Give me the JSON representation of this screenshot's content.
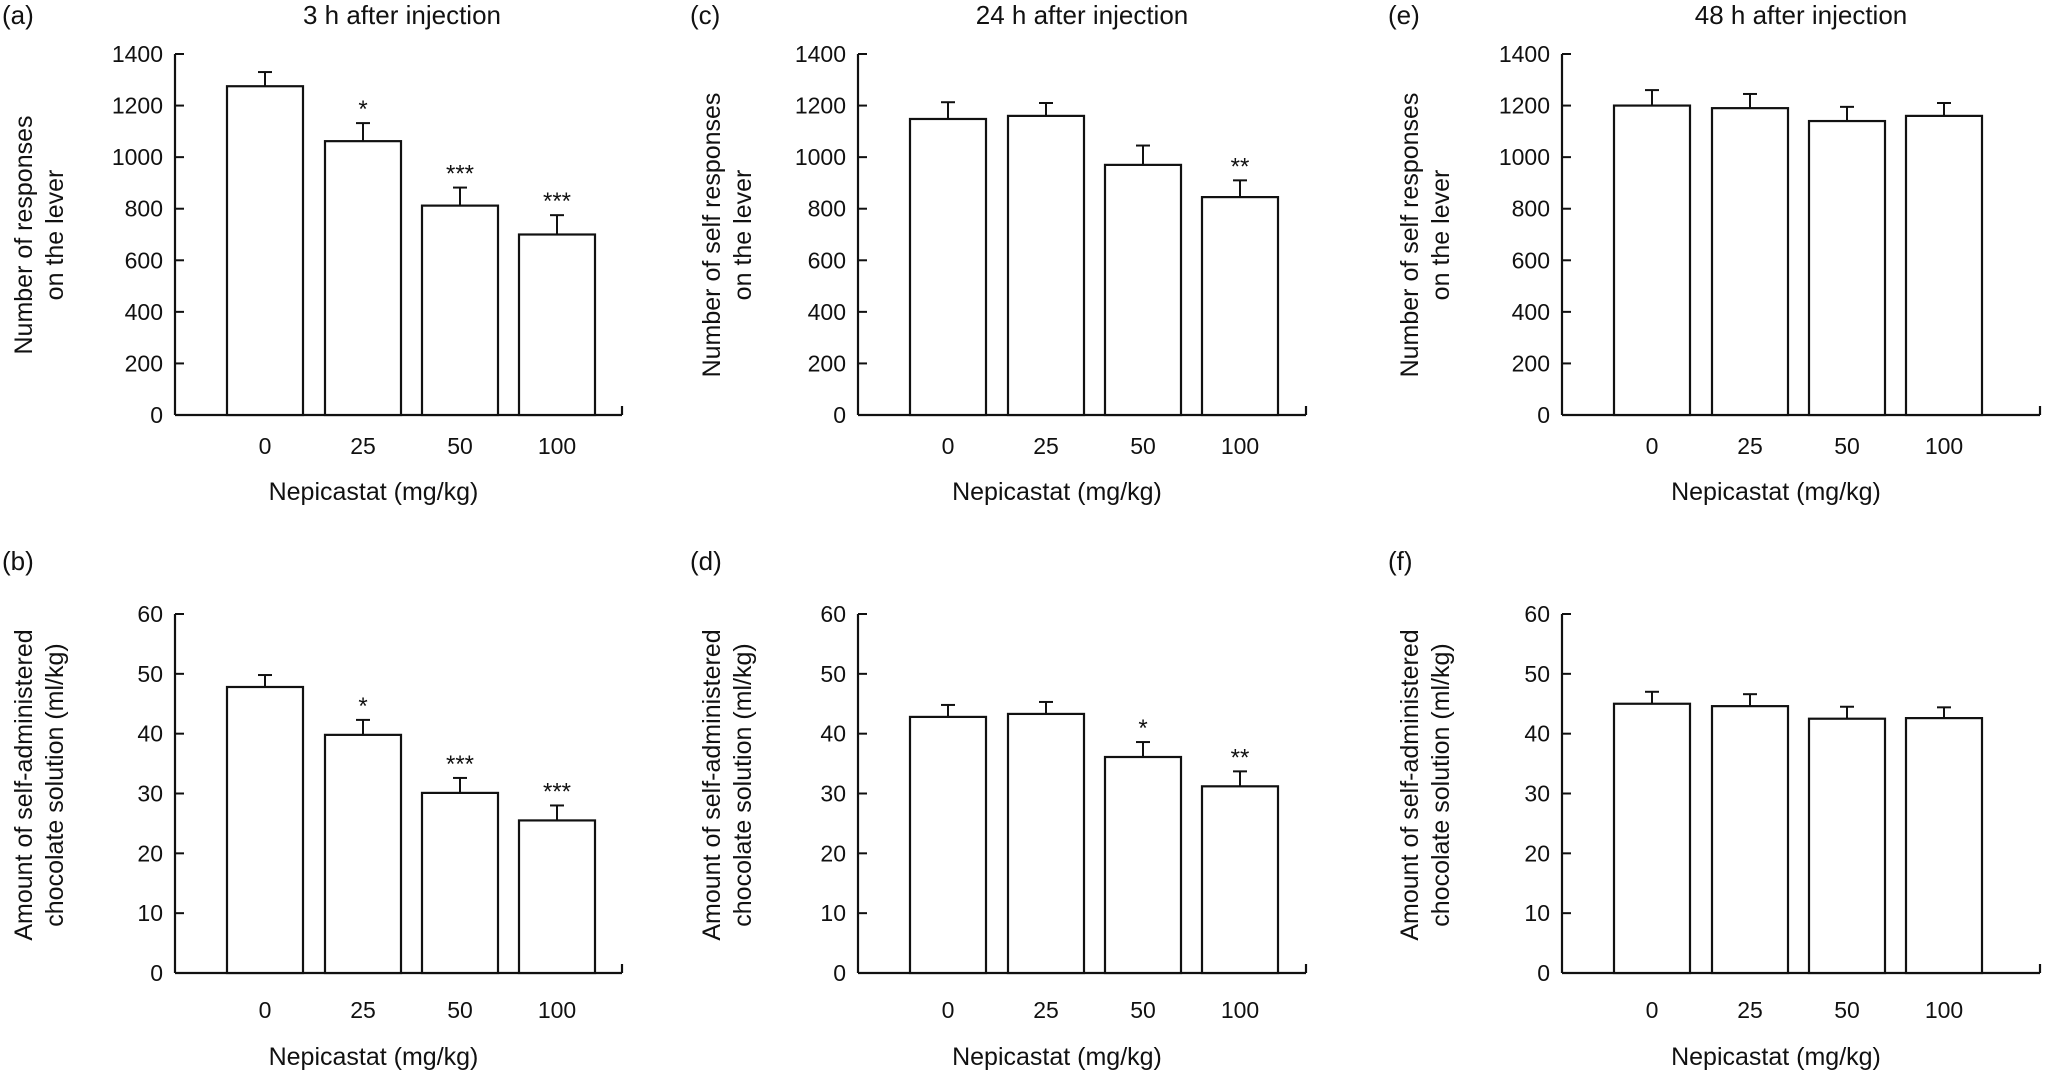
{
  "chart_data": [
    {
      "type": "bar",
      "panel": "(a)",
      "title": "3 h after injection",
      "xlabel": "Nepicastat (mg/kg)",
      "ylabel": [
        "Number of responses",
        "on the lever"
      ],
      "categories": [
        "0",
        "25",
        "50",
        "100"
      ],
      "values": [
        1275,
        1062,
        812,
        700
      ],
      "errors": [
        55,
        70,
        70,
        75
      ],
      "significance": [
        "",
        "*",
        "***",
        "***"
      ],
      "ylim": [
        0,
        1400
      ],
      "yticks": [
        "0",
        "200",
        "400",
        "600",
        "800",
        "1000",
        "1200",
        "1400"
      ]
    },
    {
      "type": "bar",
      "panel": "(b)",
      "title": "",
      "xlabel": "Nepicastat (mg/kg)",
      "ylabel": [
        "Amount of self-administered",
        "chocolate solution (ml/kg)"
      ],
      "categories": [
        "0",
        "25",
        "50",
        "100"
      ],
      "values": [
        47.8,
        39.8,
        30.1,
        25.5
      ],
      "errors": [
        2.0,
        2.5,
        2.5,
        2.5
      ],
      "significance": [
        "",
        "*",
        "***",
        "***"
      ],
      "ylim": [
        0,
        60
      ],
      "yticks": [
        "0",
        "10",
        "20",
        "30",
        "40",
        "50",
        "60"
      ]
    },
    {
      "type": "bar",
      "panel": "(c)",
      "title": "24 h after injection",
      "xlabel": "Nepicastat (mg/kg)",
      "ylabel": [
        "Number of self responses",
        "on the lever"
      ],
      "categories": [
        "0",
        "25",
        "50",
        "100"
      ],
      "values": [
        1148,
        1160,
        970,
        845
      ],
      "errors": [
        65,
        50,
        75,
        65
      ],
      "significance": [
        "",
        "",
        "",
        "**"
      ],
      "ylim": [
        0,
        1400
      ],
      "yticks": [
        "0",
        "200",
        "400",
        "600",
        "800",
        "1000",
        "1200",
        "1400"
      ]
    },
    {
      "type": "bar",
      "panel": "(d)",
      "title": "",
      "xlabel": "Nepicastat (mg/kg)",
      "ylabel": [
        "Amount of self-administered",
        "chocolate solution (ml/kg)"
      ],
      "categories": [
        "0",
        "25",
        "50",
        "100"
      ],
      "values": [
        42.8,
        43.3,
        36.1,
        31.2
      ],
      "errors": [
        2.0,
        2.0,
        2.5,
        2.5
      ],
      "significance": [
        "",
        "",
        "*",
        "**"
      ],
      "ylim": [
        0,
        60
      ],
      "yticks": [
        "0",
        "10",
        "20",
        "30",
        "40",
        "50",
        "60"
      ]
    },
    {
      "type": "bar",
      "panel": "(e)",
      "title": "48 h after injection",
      "xlabel": "Nepicastat (mg/kg)",
      "ylabel": [
        "Number of self responses",
        "on the lever"
      ],
      "categories": [
        "0",
        "25",
        "50",
        "100"
      ],
      "values": [
        1200,
        1190,
        1140,
        1160
      ],
      "errors": [
        60,
        55,
        55,
        50
      ],
      "significance": [
        "",
        "",
        "",
        ""
      ],
      "ylim": [
        0,
        1400
      ],
      "yticks": [
        "0",
        "200",
        "400",
        "600",
        "800",
        "1000",
        "1200",
        "1400"
      ]
    },
    {
      "type": "bar",
      "panel": "(f)",
      "title": "",
      "xlabel": "Nepicastat (mg/kg)",
      "ylabel": [
        "Amount of self-administered",
        "chocolate solution (ml/kg)"
      ],
      "categories": [
        "0",
        "25",
        "50",
        "100"
      ],
      "values": [
        45.0,
        44.6,
        42.5,
        42.6
      ],
      "errors": [
        2.0,
        2.0,
        2.0,
        1.8
      ],
      "significance": [
        "",
        "",
        "",
        ""
      ],
      "ylim": [
        0,
        60
      ],
      "yticks": [
        "0",
        "10",
        "20",
        "30",
        "40",
        "50",
        "60"
      ]
    }
  ]
}
